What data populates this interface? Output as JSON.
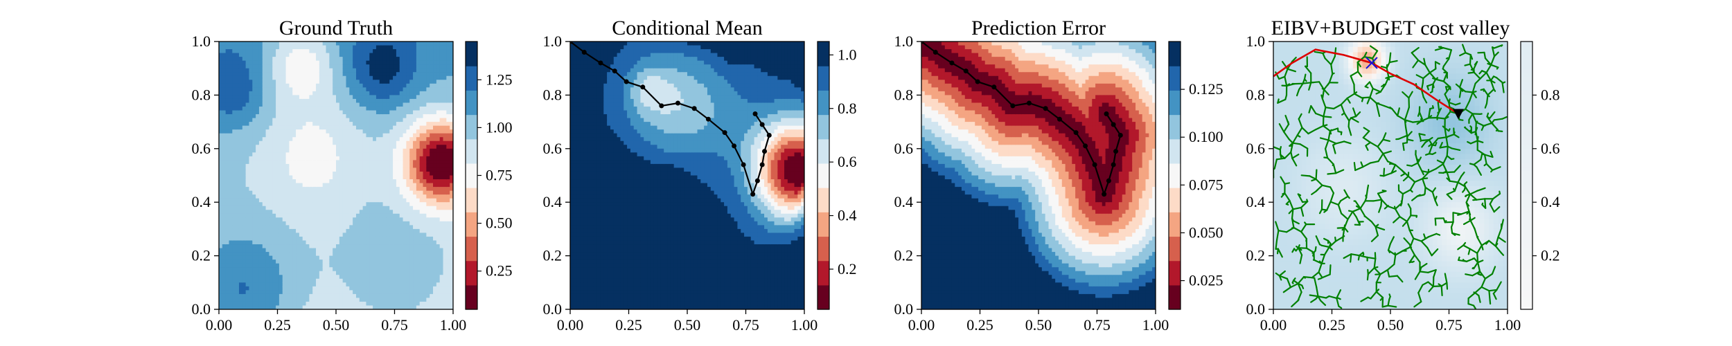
{
  "chart_data": [
    {
      "type": "heatmap",
      "title": "Ground Truth",
      "xlim": [
        0,
        1
      ],
      "ylim": [
        0,
        1
      ],
      "xticks": [
        "0.00",
        "0.25",
        "0.50",
        "0.75",
        "1.00"
      ],
      "yticks": [
        "0.0",
        "0.2",
        "0.4",
        "0.6",
        "0.8",
        "1.0"
      ],
      "colormap": "RdBu",
      "colorbar": {
        "range": [
          0.05,
          1.45
        ],
        "ticks": [
          "0.25",
          "0.50",
          "0.75",
          "1.00",
          "1.25"
        ],
        "tick_values": [
          0.25,
          0.5,
          0.75,
          1.0,
          1.25
        ]
      },
      "field": {
        "base": 0.95,
        "tilt_y": 0.35,
        "bumps": [
          {
            "x": 0.95,
            "y": 0.55,
            "s": 0.11,
            "a": -0.95
          },
          {
            "x": 0.35,
            "y": 0.92,
            "s": 0.1,
            "a": -0.35
          },
          {
            "x": 0.4,
            "y": 0.6,
            "s": 0.15,
            "a": -0.22
          },
          {
            "x": 0.1,
            "y": 0.05,
            "s": 0.18,
            "a": 0.4
          },
          {
            "x": 0.75,
            "y": 0.1,
            "s": 0.2,
            "a": 0.2
          },
          {
            "x": 0.05,
            "y": 0.82,
            "s": 0.1,
            "a": 0.25
          },
          {
            "x": 0.7,
            "y": 0.9,
            "s": 0.1,
            "a": 0.3
          }
        ]
      }
    },
    {
      "type": "heatmap",
      "title": "Conditional Mean",
      "xlim": [
        0,
        1
      ],
      "ylim": [
        0,
        1
      ],
      "xticks": [
        "0.00",
        "0.25",
        "0.50",
        "0.75",
        "1.00"
      ],
      "yticks": [
        "0.0",
        "0.2",
        "0.4",
        "0.6",
        "0.8",
        "1.0"
      ],
      "colormap": "RdBu",
      "colorbar": {
        "range": [
          0.05,
          1.05
        ],
        "ticks": [
          "0.2",
          "0.4",
          "0.6",
          "0.8",
          "1.0"
        ],
        "tick_values": [
          0.2,
          0.4,
          0.6,
          0.8,
          1.0
        ]
      },
      "field": {
        "base": 1.0,
        "tilt_y": 0,
        "bumps": [
          {
            "x": 0.97,
            "y": 0.52,
            "s": 0.13,
            "a": -0.95
          },
          {
            "x": 0.42,
            "y": 0.78,
            "s": 0.14,
            "a": -0.28
          },
          {
            "x": 0.33,
            "y": 0.82,
            "s": 0.06,
            "a": -0.15
          },
          {
            "x": 0.65,
            "y": 0.72,
            "s": 0.14,
            "a": -0.12
          }
        ],
        "south_dark": true
      },
      "path": [
        [
          0.0,
          1.0
        ],
        [
          0.06,
          0.96
        ],
        [
          0.13,
          0.92
        ],
        [
          0.19,
          0.89
        ],
        [
          0.24,
          0.85
        ],
        [
          0.31,
          0.83
        ],
        [
          0.39,
          0.76
        ],
        [
          0.46,
          0.77
        ],
        [
          0.53,
          0.75
        ],
        [
          0.59,
          0.71
        ],
        [
          0.66,
          0.66
        ],
        [
          0.7,
          0.61
        ],
        [
          0.74,
          0.54
        ],
        [
          0.78,
          0.43
        ],
        [
          0.8,
          0.48
        ],
        [
          0.82,
          0.54
        ],
        [
          0.83,
          0.59
        ],
        [
          0.85,
          0.65
        ],
        [
          0.82,
          0.69
        ],
        [
          0.79,
          0.73
        ]
      ]
    },
    {
      "type": "heatmap",
      "title": "Prediction Error",
      "xlim": [
        0,
        1
      ],
      "ylim": [
        0,
        1
      ],
      "xticks": [
        "0.00",
        "0.25",
        "0.50",
        "0.75",
        "1.00"
      ],
      "yticks": [
        "0.0",
        "0.2",
        "0.4",
        "0.6",
        "0.8",
        "1.0"
      ],
      "colormap": "RdBu",
      "colorbar": {
        "range": [
          0.01,
          0.15
        ],
        "ticks": [
          "0.025",
          "0.050",
          "0.075",
          "0.100",
          "0.125"
        ],
        "tick_values": [
          0.025,
          0.05,
          0.075,
          0.1,
          0.125
        ]
      },
      "path": [
        [
          0.0,
          1.0
        ],
        [
          0.06,
          0.96
        ],
        [
          0.13,
          0.92
        ],
        [
          0.19,
          0.89
        ],
        [
          0.24,
          0.85
        ],
        [
          0.31,
          0.83
        ],
        [
          0.39,
          0.76
        ],
        [
          0.46,
          0.77
        ],
        [
          0.53,
          0.75
        ],
        [
          0.59,
          0.71
        ],
        [
          0.66,
          0.66
        ],
        [
          0.7,
          0.61
        ],
        [
          0.74,
          0.54
        ],
        [
          0.78,
          0.43
        ],
        [
          0.8,
          0.48
        ],
        [
          0.82,
          0.54
        ],
        [
          0.83,
          0.59
        ],
        [
          0.85,
          0.65
        ],
        [
          0.82,
          0.69
        ],
        [
          0.79,
          0.73
        ]
      ]
    },
    {
      "type": "heatmap",
      "title": "EIBV+BUDGET cost valley",
      "xlim": [
        0,
        1
      ],
      "ylim": [
        0,
        1
      ],
      "xticks": [
        "0.00",
        "0.25",
        "0.50",
        "0.75",
        "1.00"
      ],
      "yticks": [
        "0.0",
        "0.2",
        "0.4",
        "0.6",
        "0.8",
        "1.0"
      ],
      "colormap": "RdBu",
      "colorbar": {
        "range": [
          0.0,
          1.0
        ],
        "ticks": [
          "0.2",
          "0.4",
          "0.6",
          "0.8"
        ],
        "tick_values": [
          0.2,
          0.4,
          0.6,
          0.8
        ]
      },
      "markers": {
        "current": {
          "x": 0.79,
          "y": 0.73,
          "symbol": "triangle-down",
          "color": "#000000"
        },
        "target": {
          "x": 0.42,
          "y": 0.92,
          "symbol": "x",
          "color": "#1010dd"
        }
      },
      "tree": {
        "root": [
          0.79,
          0.73
        ],
        "branch_color": "#008000",
        "path_color": "#dd0000"
      },
      "red_path": [
        [
          0.79,
          0.73
        ],
        [
          0.7,
          0.78
        ],
        [
          0.6,
          0.84
        ],
        [
          0.5,
          0.88
        ],
        [
          0.42,
          0.92
        ],
        [
          0.3,
          0.95
        ],
        [
          0.18,
          0.97
        ],
        [
          0.08,
          0.92
        ],
        [
          0.0,
          0.87
        ]
      ]
    }
  ],
  "colors": {
    "rdbu": [
      "#67001f",
      "#b2182b",
      "#d6604d",
      "#f4a582",
      "#fddbc7",
      "#f7f7f7",
      "#d1e5f0",
      "#92c5de",
      "#4393c3",
      "#2166ac",
      "#053061"
    ],
    "axis": "#000000"
  }
}
